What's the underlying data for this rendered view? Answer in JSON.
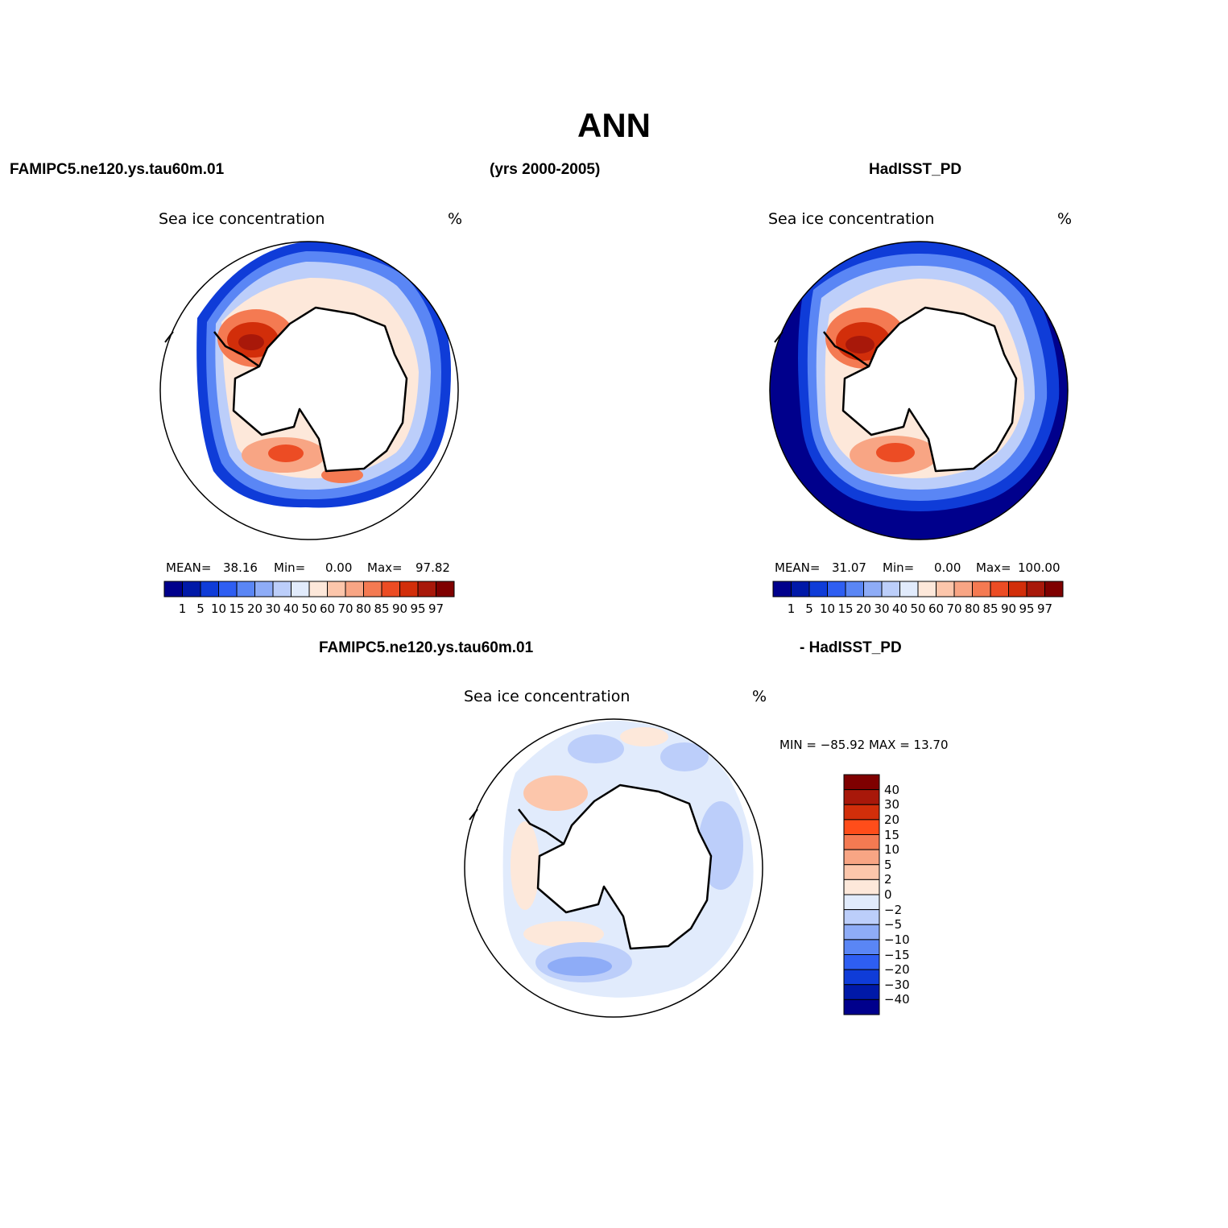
{
  "figure": {
    "season": "ANN",
    "case_name": "FAMIPC5.ne120.ys.tau60m.01",
    "years": "(yrs 2000-2005)",
    "obs_name": "HadISST_PD",
    "diff_case": "FAMIPC5.ne120.ys.tau60m.01",
    "diff_obs": "- HadISST_PD"
  },
  "panels": {
    "model": {
      "title": "Sea ice concentration",
      "units": "%",
      "mean_label": "MEAN=",
      "mean": "38.16",
      "min_label": "Min=",
      "min": "0.00",
      "max_label": "Max=",
      "max": "97.82"
    },
    "obs": {
      "title": "Sea ice concentration",
      "units": "%",
      "mean_label": "MEAN=",
      "mean": "31.07",
      "min_label": "Min=",
      "min": "0.00",
      "max_label": "Max=",
      "max": "100.00"
    },
    "diff": {
      "title": "Sea ice concentration",
      "units": "%",
      "minmax": "MIN = −85.92  MAX =    13.70"
    }
  },
  "colorbars": {
    "conc": {
      "labels": [
        "1",
        "5",
        "10",
        "15",
        "20",
        "30",
        "40",
        "50",
        "60",
        "70",
        "80",
        "85",
        "90",
        "95",
        "97"
      ],
      "colors": [
        "#00008c",
        "#0019a8",
        "#0f3cd8",
        "#2e5ef2",
        "#5a86f5",
        "#8eacf7",
        "#bccefa",
        "#e1ebfc",
        "#fde8da",
        "#fcc6ab",
        "#f8a584",
        "#f47a52",
        "#ec4c24",
        "#d22e0a",
        "#a8180a",
        "#7f0000"
      ]
    },
    "diff": {
      "labels": [
        "40",
        "30",
        "20",
        "15",
        "10",
        "5",
        "2",
        "0",
        "−2",
        "−5",
        "−10",
        "−15",
        "−20",
        "−30",
        "−40"
      ],
      "colors": [
        "#7f0000",
        "#a8180a",
        "#d22e0a",
        "#ff4d1a",
        "#f47a52",
        "#f8a584",
        "#fcc6ab",
        "#fde8da",
        "#e1ebfc",
        "#bccefa",
        "#8eacf7",
        "#5a86f5",
        "#2e5ef2",
        "#0f3cd8",
        "#0019a8",
        "#00008c"
      ]
    }
  }
}
